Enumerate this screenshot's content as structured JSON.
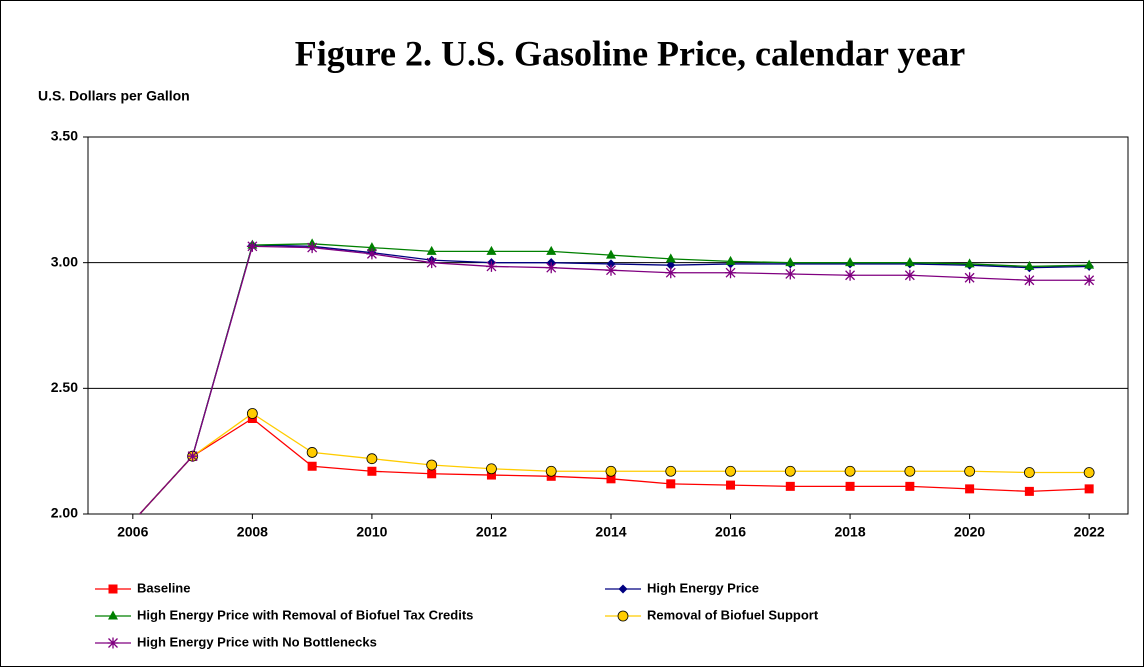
{
  "chart_data": {
    "type": "line",
    "title": "Figure 2. U.S. Gasoline Price, calendar year",
    "y_label": "U.S. Dollars per Gallon",
    "x": [
      2006,
      2007,
      2008,
      2009,
      2010,
      2011,
      2012,
      2013,
      2014,
      2015,
      2016,
      2017,
      2018,
      2019,
      2020,
      2021,
      2022
    ],
    "xlim": [
      2005.25,
      2022.65
    ],
    "xticks": [
      2006,
      2008,
      2010,
      2012,
      2014,
      2016,
      2018,
      2020,
      2022
    ],
    "ylim": [
      2.0,
      3.5
    ],
    "yticks": [
      {
        "value": 2.0,
        "label": "2.00"
      },
      {
        "value": 2.5,
        "label": "2.50"
      },
      {
        "value": 3.0,
        "label": "3.00"
      },
      {
        "value": 3.5,
        "label": "3.50"
      }
    ],
    "grid": true,
    "legend": "bottom",
    "series": [
      {
        "name": "Baseline",
        "color": "#ff0000",
        "marker": "square",
        "values": [
          1.97,
          2.23,
          2.38,
          2.19,
          2.17,
          2.16,
          2.155,
          2.15,
          2.14,
          2.12,
          2.115,
          2.11,
          2.11,
          2.11,
          2.1,
          2.09,
          2.1
        ]
      },
      {
        "name": "High Energy Price",
        "color": "#000080",
        "marker": "diamond",
        "values": [
          1.97,
          2.23,
          3.07,
          3.065,
          3.04,
          3.01,
          3.0,
          3.0,
          2.995,
          2.99,
          2.995,
          2.995,
          2.995,
          2.995,
          2.99,
          2.98,
          2.985
        ]
      },
      {
        "name": "High Energy Price with Removal of Biofuel Tax Credits",
        "color": "#008000",
        "marker": "triangle",
        "values": [
          1.97,
          2.23,
          3.07,
          3.075,
          3.06,
          3.045,
          3.045,
          3.045,
          3.03,
          3.015,
          3.005,
          3.0,
          3.0,
          3.0,
          2.995,
          2.985,
          2.99
        ]
      },
      {
        "name": "Removal of Biofuel Support",
        "color": "#ffcc00",
        "marker": "circle",
        "values": [
          1.97,
          2.23,
          2.4,
          2.245,
          2.22,
          2.195,
          2.18,
          2.17,
          2.17,
          2.17,
          2.17,
          2.17,
          2.17,
          2.17,
          2.17,
          2.165,
          2.165
        ]
      },
      {
        "name": "High Energy Price with No Bottlenecks",
        "color": "#800080",
        "marker": "star",
        "values": [
          1.97,
          2.23,
          3.065,
          3.06,
          3.035,
          3.0,
          2.985,
          2.98,
          2.97,
          2.96,
          2.96,
          2.955,
          2.95,
          2.95,
          2.94,
          2.93,
          2.93
        ]
      }
    ]
  }
}
